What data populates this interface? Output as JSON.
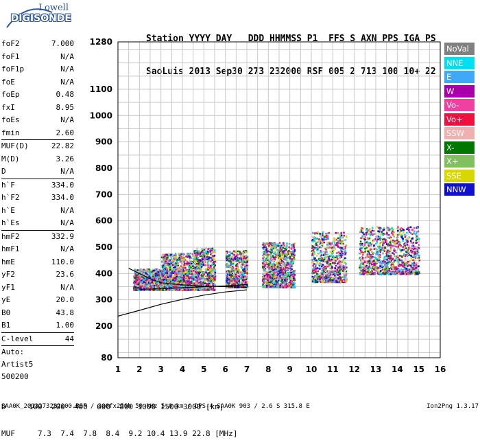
{
  "logo": {
    "company": "Lowell",
    "product": "DIGISONDE"
  },
  "header": {
    "line1": "Station YYYY DAY   DDD HHMMSS P1  FFS S AXN PPS IGA PS",
    "line2": "SaoLuis 2013 Sep30 273 232000 RSF 005 2 713 100 10+ 22"
  },
  "params": [
    {
      "label": "foF2",
      "value": "7.000"
    },
    {
      "label": "foF1",
      "value": "N/A"
    },
    {
      "label": "foF1p",
      "value": "N/A"
    },
    {
      "label": "foE",
      "value": "N/A"
    },
    {
      "label": "foEp",
      "value": "0.48"
    },
    {
      "label": "fxI",
      "value": "8.95"
    },
    {
      "label": "foEs",
      "value": "N/A"
    },
    {
      "label": "fmin",
      "value": "2.60"
    },
    {
      "sep": true
    },
    {
      "label": "MUF(D)",
      "value": "22.82"
    },
    {
      "label": "M(D)",
      "value": "3.26"
    },
    {
      "label": "D",
      "value": "N/A"
    },
    {
      "sep": true
    },
    {
      "label": "h`F",
      "value": "334.0"
    },
    {
      "label": "h`F2",
      "value": "334.0"
    },
    {
      "label": "h`E",
      "value": "N/A"
    },
    {
      "label": "h`Es",
      "value": "N/A"
    },
    {
      "sep": true
    },
    {
      "label": "hmF2",
      "value": "332.9"
    },
    {
      "label": "hmF1",
      "value": "N/A"
    },
    {
      "label": "hmE",
      "value": "110.0"
    },
    {
      "label": "yF2",
      "value": "23.6"
    },
    {
      "label": "yF1",
      "value": "N/A"
    },
    {
      "label": "yE",
      "value": "20.0"
    },
    {
      "label": "B0",
      "value": "43.8"
    },
    {
      "label": "B1",
      "value": "1.00"
    },
    {
      "sep": true
    },
    {
      "label": "C-level",
      "value": "44"
    },
    {
      "sep": true
    },
    {
      "text": "Auto:"
    },
    {
      "text": "Artist5"
    },
    {
      "text": "500200"
    }
  ],
  "legend": [
    {
      "label": "NoVal",
      "color": "#808080"
    },
    {
      "label": "NNE",
      "color": "#00e0f0"
    },
    {
      "label": "E",
      "color": "#40a8f8"
    },
    {
      "label": "W",
      "color": "#a800a8"
    },
    {
      "label": "Vo-",
      "color": "#f040a0"
    },
    {
      "label": "Vo+",
      "color": "#f01040"
    },
    {
      "label": "SSW",
      "color": "#f0b0b0"
    },
    {
      "label": "X-",
      "color": "#007800"
    },
    {
      "label": "X+",
      "color": "#80c060"
    },
    {
      "label": "SSE",
      "color": "#d8d800"
    },
    {
      "label": "NNW",
      "color": "#1010d0"
    }
  ],
  "chart_data": {
    "type": "scatter",
    "xlabel": "",
    "ylabel": "",
    "xlim": [
      1,
      16
    ],
    "ylim": [
      80,
      1280
    ],
    "x_ticks": [
      1,
      2,
      3,
      4,
      5,
      6,
      7,
      8,
      9,
      10,
      11,
      12,
      13,
      14,
      15,
      16
    ],
    "y_ticks": [
      80,
      200,
      300,
      400,
      500,
      600,
      700,
      800,
      900,
      1000,
      1100,
      1280
    ],
    "grid": true,
    "legend_position": "right",
    "echo_clusters": [
      {
        "x": [
          1.7,
          3.0
        ],
        "y": [
          340,
          420
        ],
        "density": 1.0
      },
      {
        "x": [
          3.0,
          4.5
        ],
        "y": [
          340,
          480
        ],
        "density": 1.0
      },
      {
        "x": [
          4.5,
          5.5
        ],
        "y": [
          340,
          500
        ],
        "density": 0.9
      },
      {
        "x": [
          6.0,
          7.0
        ],
        "y": [
          350,
          490
        ],
        "density": 0.85
      },
      {
        "x": [
          7.7,
          9.2
        ],
        "y": [
          350,
          520
        ],
        "density": 0.95
      },
      {
        "x": [
          10.0,
          11.6
        ],
        "y": [
          370,
          560
        ],
        "density": 0.7
      },
      {
        "x": [
          12.2,
          15.0
        ],
        "y": [
          400,
          580
        ],
        "density": 0.55
      }
    ],
    "profile_lines": [
      {
        "name": "",
        "points": [
          [
            1,
            238
          ],
          [
            2,
            260
          ],
          [
            3,
            283
          ],
          [
            4,
            302
          ],
          [
            5,
            318
          ],
          [
            6,
            330
          ],
          [
            7,
            338
          ]
        ]
      },
      {
        "name": "",
        "points": [
          [
            1.5,
            420
          ],
          [
            2.0,
            400
          ],
          [
            2.5,
            380
          ],
          [
            3.0,
            365
          ],
          [
            4.0,
            357
          ],
          [
            5.0,
            352
          ],
          [
            7.0,
            348
          ]
        ]
      },
      {
        "name": "",
        "points": [
          [
            2.0,
            340
          ],
          [
            3.0,
            342
          ],
          [
            4.0,
            346
          ],
          [
            5.0,
            350
          ],
          [
            6.0,
            353
          ],
          [
            7.0,
            358
          ]
        ]
      }
    ]
  },
  "muf_table": {
    "d_label": "D",
    "d_values": [
      "100",
      "200",
      "400",
      "600",
      "800",
      "1000",
      "1500",
      "3000"
    ],
    "d_unit": "[km]",
    "muf_label": "MUF",
    "muf_values": [
      "7.3",
      "7.4",
      "7.8",
      "8.4",
      "9.2",
      "10.4",
      "13.9",
      "22.8"
    ],
    "muf_unit": "[MHz]"
  },
  "footer": {
    "file_info": "SAA0K_2013273232000.RSF / 300fx256h 50 kHz 5.0 km / DPS-4 SAA0K 903 / 2.6 S 315.8 E",
    "version": "Ion2Png 1.3.17"
  }
}
